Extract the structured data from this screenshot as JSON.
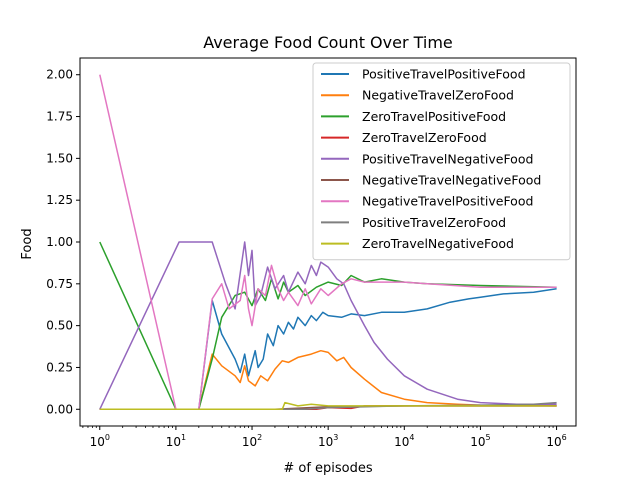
{
  "chart_data": {
    "type": "line",
    "title": "Average Food Count Over Time",
    "xlabel": "# of episodes",
    "ylabel": "Food",
    "xscale": "log",
    "xlim": [
      0.55,
      1800000
    ],
    "ylim": [
      -0.1,
      2.1
    ],
    "grid": false,
    "legend_position": "top-right",
    "x_ticks": [
      {
        "value": 1,
        "base": "10",
        "exp": "0"
      },
      {
        "value": 10,
        "base": "10",
        "exp": "1"
      },
      {
        "value": 100,
        "base": "10",
        "exp": "2"
      },
      {
        "value": 1000,
        "base": "10",
        "exp": "3"
      },
      {
        "value": 10000,
        "base": "10",
        "exp": "4"
      },
      {
        "value": 100000,
        "base": "10",
        "exp": "5"
      },
      {
        "value": 1000000,
        "base": "10",
        "exp": "6"
      }
    ],
    "y_ticks": [
      {
        "value": 0.0,
        "label": "0.00"
      },
      {
        "value": 0.25,
        "label": "0.25"
      },
      {
        "value": 0.5,
        "label": "0.50"
      },
      {
        "value": 0.75,
        "label": "0.75"
      },
      {
        "value": 1.0,
        "label": "1.00"
      },
      {
        "value": 1.25,
        "label": "1.25"
      },
      {
        "value": 1.5,
        "label": "1.50"
      },
      {
        "value": 1.75,
        "label": "1.75"
      },
      {
        "value": 2.0,
        "label": "2.00"
      }
    ],
    "series": [
      {
        "name": "PositiveTravelPositiveFood",
        "color": "#1f77b4",
        "points": [
          [
            1,
            0
          ],
          [
            10,
            0
          ],
          [
            20,
            0
          ],
          [
            30,
            0.65
          ],
          [
            40,
            0.45
          ],
          [
            60,
            0.3
          ],
          [
            70,
            0.22
          ],
          [
            80,
            0.33
          ],
          [
            90,
            0.2
          ],
          [
            110,
            0.35
          ],
          [
            120,
            0.25
          ],
          [
            140,
            0.3
          ],
          [
            160,
            0.45
          ],
          [
            190,
            0.38
          ],
          [
            220,
            0.5
          ],
          [
            260,
            0.45
          ],
          [
            300,
            0.52
          ],
          [
            350,
            0.48
          ],
          [
            400,
            0.55
          ],
          [
            500,
            0.5
          ],
          [
            600,
            0.56
          ],
          [
            700,
            0.53
          ],
          [
            850,
            0.58
          ],
          [
            1000,
            0.56
          ],
          [
            1500,
            0.55
          ],
          [
            2000,
            0.57
          ],
          [
            3000,
            0.56
          ],
          [
            5000,
            0.58
          ],
          [
            10000,
            0.58
          ],
          [
            20000,
            0.6
          ],
          [
            40000,
            0.64
          ],
          [
            70000,
            0.66
          ],
          [
            100000,
            0.67
          ],
          [
            200000,
            0.69
          ],
          [
            500000,
            0.7
          ],
          [
            1000000,
            0.72
          ]
        ]
      },
      {
        "name": "NegativeTravelZeroFood",
        "color": "#ff7f0e",
        "points": [
          [
            1,
            0
          ],
          [
            20,
            0
          ],
          [
            30,
            0.33
          ],
          [
            40,
            0.26
          ],
          [
            60,
            0.2
          ],
          [
            70,
            0.16
          ],
          [
            80,
            0.26
          ],
          [
            90,
            0.17
          ],
          [
            110,
            0.14
          ],
          [
            130,
            0.2
          ],
          [
            160,
            0.17
          ],
          [
            200,
            0.24
          ],
          [
            250,
            0.29
          ],
          [
            300,
            0.28
          ],
          [
            400,
            0.31
          ],
          [
            600,
            0.33
          ],
          [
            800,
            0.35
          ],
          [
            1000,
            0.34
          ],
          [
            1300,
            0.29
          ],
          [
            1600,
            0.31
          ],
          [
            2000,
            0.25
          ],
          [
            3000,
            0.18
          ],
          [
            5000,
            0.1
          ],
          [
            10000,
            0.06
          ],
          [
            20000,
            0.04
          ],
          [
            50000,
            0.03
          ],
          [
            100000,
            0.025
          ],
          [
            1000000,
            0.02
          ]
        ]
      },
      {
        "name": "ZeroTravelPositiveFood",
        "color": "#2ca02c",
        "points": [
          [
            1,
            1
          ],
          [
            10,
            0
          ],
          [
            20,
            0
          ],
          [
            30,
            0.3
          ],
          [
            40,
            0.55
          ],
          [
            60,
            0.68
          ],
          [
            80,
            0.7
          ],
          [
            100,
            0.62
          ],
          [
            120,
            0.72
          ],
          [
            150,
            0.65
          ],
          [
            180,
            0.78
          ],
          [
            220,
            0.66
          ],
          [
            260,
            0.76
          ],
          [
            300,
            0.7
          ],
          [
            400,
            0.74
          ],
          [
            500,
            0.68
          ],
          [
            700,
            0.73
          ],
          [
            1000,
            0.76
          ],
          [
            1500,
            0.74
          ],
          [
            2000,
            0.8
          ],
          [
            3000,
            0.76
          ],
          [
            5000,
            0.78
          ],
          [
            10000,
            0.76
          ],
          [
            20000,
            0.75
          ],
          [
            100000,
            0.74
          ],
          [
            1000000,
            0.73
          ]
        ]
      },
      {
        "name": "ZeroTravelZeroFood",
        "color": "#d62728",
        "points": [
          [
            1,
            0
          ],
          [
            300,
            0
          ],
          [
            700,
            0
          ],
          [
            1000,
            0.01
          ],
          [
            2000,
            0.005
          ],
          [
            3000,
            0.02
          ],
          [
            10000,
            0.02
          ],
          [
            100000,
            0.02
          ],
          [
            1000000,
            0.02
          ]
        ]
      },
      {
        "name": "PositiveTravelNegativeFood",
        "color": "#9467bd",
        "points": [
          [
            1,
            0
          ],
          [
            11,
            1
          ],
          [
            30,
            1
          ],
          [
            45,
            0.75
          ],
          [
            60,
            0.6
          ],
          [
            80,
            1.0
          ],
          [
            90,
            0.8
          ],
          [
            100,
            0.95
          ],
          [
            110,
            0.62
          ],
          [
            130,
            0.68
          ],
          [
            160,
            0.85
          ],
          [
            200,
            0.72
          ],
          [
            260,
            0.8
          ],
          [
            300,
            0.7
          ],
          [
            400,
            0.82
          ],
          [
            500,
            0.75
          ],
          [
            600,
            0.86
          ],
          [
            700,
            0.8
          ],
          [
            800,
            0.88
          ],
          [
            1000,
            0.85
          ],
          [
            1300,
            0.78
          ],
          [
            1600,
            0.75
          ],
          [
            2000,
            0.65
          ],
          [
            3000,
            0.5
          ],
          [
            4000,
            0.4
          ],
          [
            6000,
            0.3
          ],
          [
            10000,
            0.2
          ],
          [
            20000,
            0.12
          ],
          [
            50000,
            0.06
          ],
          [
            100000,
            0.04
          ],
          [
            300000,
            0.03
          ],
          [
            1000000,
            0.03
          ]
        ]
      },
      {
        "name": "NegativeTravelNegativeFood",
        "color": "#8c564b",
        "points": [
          [
            1,
            0
          ],
          [
            200,
            0
          ],
          [
            1000,
            0.015
          ],
          [
            10000,
            0.02
          ],
          [
            100000,
            0.02
          ],
          [
            1000000,
            0.02
          ]
        ]
      },
      {
        "name": "NegativeTravelPositiveFood",
        "color": "#e377c2",
        "points": [
          [
            1,
            2
          ],
          [
            10,
            0
          ],
          [
            20,
            0
          ],
          [
            30,
            0.66
          ],
          [
            40,
            0.75
          ],
          [
            50,
            0.6
          ],
          [
            70,
            0.65
          ],
          [
            80,
            0.8
          ],
          [
            90,
            0.6
          ],
          [
            100,
            0.5
          ],
          [
            120,
            0.72
          ],
          [
            150,
            0.68
          ],
          [
            180,
            0.86
          ],
          [
            220,
            0.72
          ],
          [
            260,
            0.65
          ],
          [
            300,
            0.7
          ],
          [
            400,
            0.62
          ],
          [
            500,
            0.72
          ],
          [
            600,
            0.63
          ],
          [
            800,
            0.72
          ],
          [
            1000,
            0.68
          ],
          [
            1500,
            0.75
          ],
          [
            2000,
            0.78
          ],
          [
            3000,
            0.76
          ],
          [
            5000,
            0.76
          ],
          [
            10000,
            0.76
          ],
          [
            20000,
            0.75
          ],
          [
            100000,
            0.73
          ],
          [
            1000000,
            0.73
          ]
        ]
      },
      {
        "name": "PositiveTravelZeroFood",
        "color": "#7f7f7f",
        "points": [
          [
            1,
            0
          ],
          [
            500,
            0
          ],
          [
            1000,
            0.01
          ],
          [
            10000,
            0.02
          ],
          [
            100000,
            0.025
          ],
          [
            500000,
            0.03
          ],
          [
            1000000,
            0.04
          ]
        ]
      },
      {
        "name": "ZeroTravelNegativeFood",
        "color": "#bcbd22",
        "points": [
          [
            1,
            0
          ],
          [
            250,
            0
          ],
          [
            270,
            0.04
          ],
          [
            400,
            0.02
          ],
          [
            600,
            0.03
          ],
          [
            1000,
            0.02
          ],
          [
            3000,
            0.02
          ],
          [
            10000,
            0.02
          ],
          [
            100000,
            0.02
          ],
          [
            1000000,
            0.02
          ]
        ]
      }
    ]
  }
}
